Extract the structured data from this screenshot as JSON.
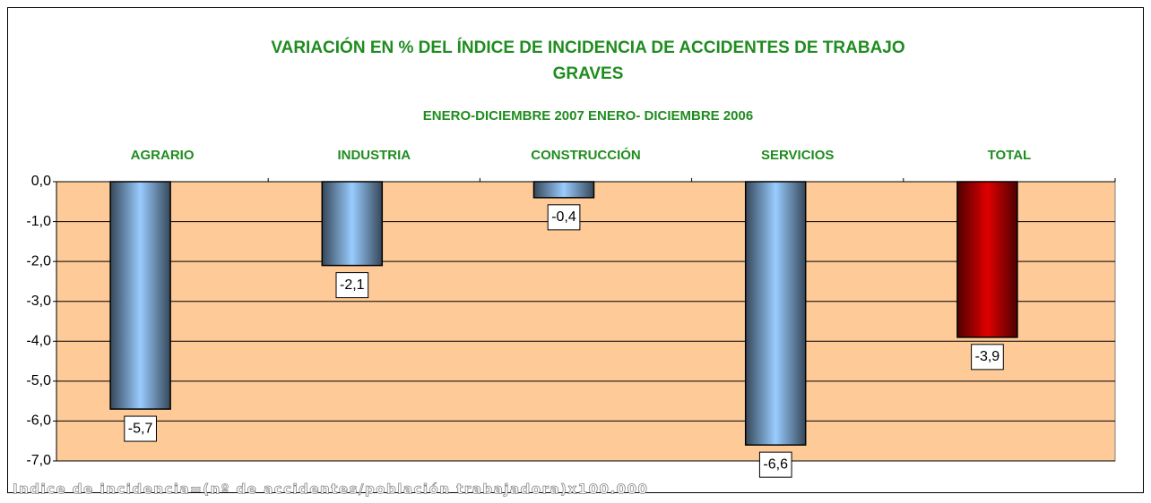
{
  "chart_data": {
    "type": "bar",
    "title": "VARIACIÓN EN % DEL ÍNDICE DE INCIDENCIA  DE ACCIDENTES DE TRABAJO",
    "title_line2": "GRAVES",
    "subtitle": "ENERO-DICIEMBRE 2007 ENERO- DICIEMBRE 2006",
    "categories": [
      "AGRARIO",
      "INDUSTRIA",
      "CONSTRUCCIÓN",
      "SERVICIOS",
      "TOTAL"
    ],
    "values": [
      -5.7,
      -2.1,
      -0.4,
      -6.6,
      -3.9
    ],
    "value_labels": [
      "-5,7",
      "-2,1",
      "-0,4",
      "-6,6",
      "-3,9"
    ],
    "colors": [
      "#99ccff",
      "#99ccff",
      "#99ccff",
      "#99ccff",
      "#e00000"
    ],
    "plot_background": "#fdca98",
    "ylim": [
      -7,
      0
    ],
    "yticks": [
      {
        "value": 0,
        "label": "0,0"
      },
      {
        "value": -1,
        "label": "-1,0"
      },
      {
        "value": -2,
        "label": "-2,0"
      },
      {
        "value": -3,
        "label": "-3,0"
      },
      {
        "value": -4,
        "label": "-4,0"
      },
      {
        "value": -5,
        "label": "-5,0"
      },
      {
        "value": -6,
        "label": "-6,0"
      },
      {
        "value": -7,
        "label": "-7,0"
      }
    ],
    "grid": true,
    "note": "Indice de incidencia=(nº de accidentes/población trabajadora)x100.000"
  }
}
